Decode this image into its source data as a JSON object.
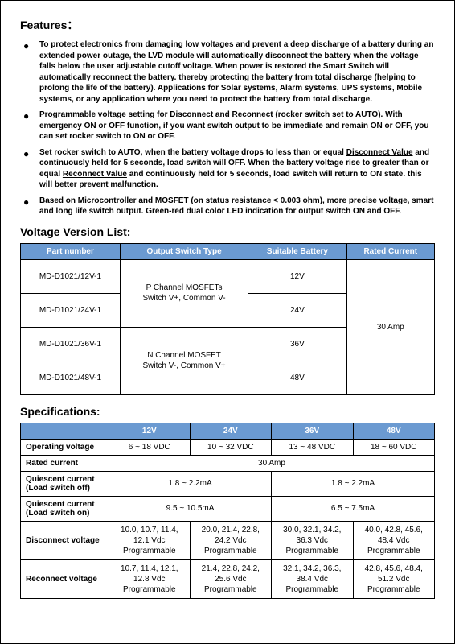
{
  "features_heading": "Features：",
  "features": {
    "items": [
      "To protect electronics from damaging low voltages and prevent a deep discharge of a battery during an extended power outage, the LVD module will automatically disconnect the battery when the voltage falls below the user adjustable cutoff voltage.   When power is restored the Smart Switch will automatically reconnect the battery. thereby protecting the battery from total discharge (helping to prolong the life of the battery). Applications for Solar systems, Alarm systems, UPS systems, Mobile systems, or any application where you need to protect the battery from total discharge.",
      "Programmable voltage setting for Disconnect and Reconnect (rocker switch set to AUTO). With emergency ON or OFF function, if you want switch output to be immediate and remain ON or OFF, you can set rocker switch to ON or OFF.",
      "Set rocker switch to AUTO, when the battery voltage drops to less than or equal <span class='underline'>Disconnect Value</span> and continuously held for 5 seconds, load switch will OFF. When the battery voltage rise to greater than or equal <span class='underline'>Reconnect Value</span> and continuously held for 5 seconds, load switch will return to ON state. this will better prevent malfunction.",
      "Based on Microcontroller and MOSFET (on status resistance < 0.003 ohm), more precise voltage, smart and long life switch output. Green-red dual color LED indication for output switch ON and OFF."
    ]
  },
  "version_heading": "Voltage Version List:",
  "version_table": {
    "headers": [
      "Part number",
      "Output Switch Type",
      "Suitable Battery",
      "Rated Current"
    ],
    "parts": [
      "MD-D1021/12V-1",
      "MD-D1021/24V-1",
      "MD-D1021/36V-1",
      "MD-D1021/48V-1"
    ],
    "switch_type_p": "P Channel MOSFETs\nSwitch V+, Common V-",
    "switch_type_n": "N Channel MOSFET\nSwitch V-, Common V+",
    "batteries": [
      "12V",
      "24V",
      "36V",
      "48V"
    ],
    "rated_current": "30 Amp"
  },
  "spec_heading": "Specifications:",
  "spec_table": {
    "cols": [
      "12V",
      "24V",
      "36V",
      "48V"
    ],
    "operating_voltage": {
      "label": "Operating voltage",
      "vals": [
        "6 ~ 18 VDC",
        "10 ~ 32 VDC",
        "13 ~ 48 VDC",
        "18 ~ 60 VDC"
      ]
    },
    "rated_current": {
      "label": "Rated current",
      "val": "30 Amp"
    },
    "q_off": {
      "label": "Quiescent current (Load switch off)",
      "left": "1.8 ~ 2.2mA",
      "right": "1.8 ~ 2.2mA"
    },
    "q_on": {
      "label": "Quiescent current (Load switch on)",
      "left": "9.5 ~ 10.5mA",
      "right": "6.5 ~ 7.5mA"
    },
    "disconnect": {
      "label": "Disconnect voltage",
      "vals": [
        "10.0, 10.7, 11.4,\n12.1 Vdc\nProgrammable",
        "20.0, 21.4, 22.8,\n24.2 Vdc\nProgrammable",
        "30.0, 32.1, 34.2,\n36.3 Vdc\nProgrammable",
        "40.0, 42.8, 45.6,\n48.4 Vdc\nProgrammable"
      ]
    },
    "reconnect": {
      "label": "Reconnect voltage",
      "vals": [
        "10.7, 11.4, 12.1,\n12.8 Vdc\nProgrammable",
        "21.4, 22.8, 24.2,\n25.6 Vdc\nProgrammable",
        "32.1, 34.2, 36.3,\n38.4 Vdc\nProgrammable",
        "42.8, 45.6, 48.4,\n51.2 Vdc\nProgrammable"
      ]
    }
  }
}
